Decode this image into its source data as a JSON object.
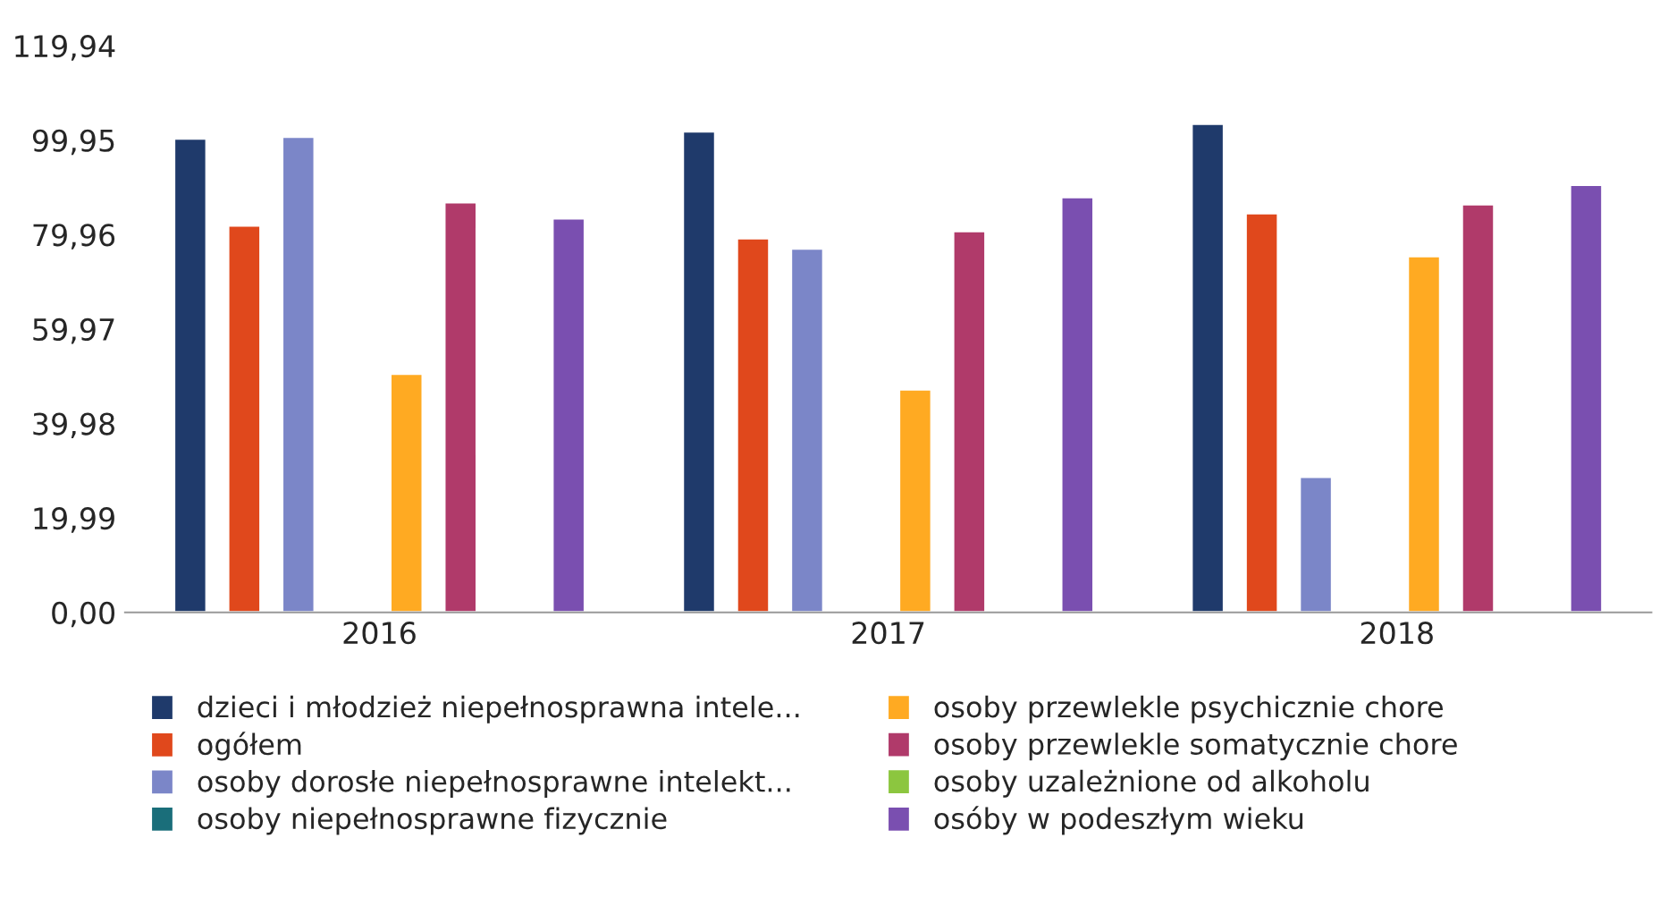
{
  "chart_data": {
    "type": "bar",
    "categories": [
      "2016",
      "2017",
      "2018"
    ],
    "ylim": [
      0,
      119.94
    ],
    "yticks": [
      {
        "value": 0,
        "label": "0,00"
      },
      {
        "value": 19.99,
        "label": "19,99"
      },
      {
        "value": 39.98,
        "label": "39,98"
      },
      {
        "value": 59.97,
        "label": "59,97"
      },
      {
        "value": 79.96,
        "label": "79,96"
      },
      {
        "value": 99.95,
        "label": "99,95"
      },
      {
        "value": 119.94,
        "label": "119,94"
      }
    ],
    "grid": false,
    "legend": "bottom",
    "series": [
      {
        "name": "dzieci i młodzież niepełnosprawna intele...",
        "color": "#1f3a6b",
        "values": [
          100.3,
          101.8,
          103.4
        ]
      },
      {
        "name": "ogółem",
        "color": "#e0481c",
        "values": [
          81.9,
          79.2,
          84.5
        ]
      },
      {
        "name": "osoby dorosłe niepełnosprawne intelekt...",
        "color": "#7b86c8",
        "values": [
          100.7,
          77.0,
          28.7
        ]
      },
      {
        "name": "osoby niepełnosprawne fizycznie",
        "color": "#1a6e7a",
        "values": [
          null,
          null,
          null
        ]
      },
      {
        "name": "osoby przewlekle psychicznie chore",
        "color": "#ffaa22",
        "values": [
          50.5,
          47.2,
          75.4
        ]
      },
      {
        "name": "osoby przewlekle somatycznie chore",
        "color": "#b03a6a",
        "values": [
          86.8,
          80.7,
          86.4
        ]
      },
      {
        "name": "osoby uzależnione od alkoholu",
        "color": "#8cc63f",
        "values": [
          null,
          null,
          null
        ]
      },
      {
        "name": "osóby w podeszłym wieku",
        "color": "#7a4fb0",
        "values": [
          83.4,
          87.9,
          90.5
        ]
      }
    ]
  }
}
